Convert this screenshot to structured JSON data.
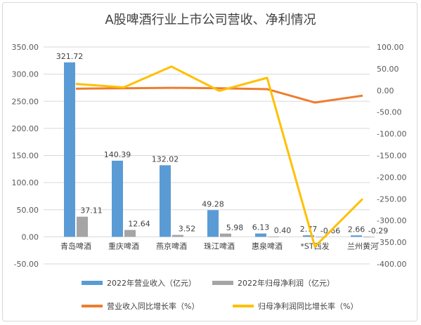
{
  "colors": {
    "bar_revenue": "#5b9bd5",
    "bar_profit": "#a5a5a5",
    "line_revenue_yoy": "#ed7d31",
    "line_profit_yoy": "#ffc000",
    "grid": "#d9d9d9"
  },
  "chart_data": {
    "type": "bar",
    "title": "A股啤酒行业上市公司营收、净利情况",
    "categories": [
      "青岛啤酒",
      "重庆啤酒",
      "燕京啤酒",
      "珠江啤酒",
      "惠泉啤酒",
      "*ST西发",
      "兰州黄河"
    ],
    "y_left": {
      "lim": [
        -50,
        350
      ],
      "ticks": [
        "-50.00",
        "0.00",
        "50.00",
        "100.00",
        "150.00",
        "200.00",
        "250.00",
        "300.00",
        "350.00"
      ]
    },
    "y_right": {
      "lim": [
        -400,
        100
      ],
      "ticks": [
        "-400.00",
        "-350.00",
        "-300.00",
        "-250.00",
        "-200.00",
        "-150.00",
        "-100.00",
        "-50.00",
        "0.00",
        "50.00",
        "100.00"
      ]
    },
    "grid": true,
    "legend_position": "bottom",
    "series": [
      {
        "name": "2022年营业收入（亿元）",
        "type": "bar",
        "axis": "left",
        "values": [
          321.72,
          140.39,
          132.02,
          49.28,
          6.13,
          2.77,
          2.66
        ],
        "labels": [
          "321.72",
          "140.39",
          "132.02",
          "49.28",
          "6.13",
          "2.77",
          "2.66"
        ]
      },
      {
        "name": "2022年归母净利润（亿元）",
        "type": "bar",
        "axis": "left",
        "values": [
          37.11,
          12.64,
          3.52,
          5.98,
          0.4,
          -0.66,
          -0.29
        ],
        "labels": [
          "37.11",
          "12.64",
          "3.52",
          "5.98",
          "0.40",
          "-0.66",
          "-0.29"
        ]
      },
      {
        "name": "营业收入同比增长率（%）",
        "type": "line",
        "axis": "right",
        "values": [
          4,
          5,
          6,
          5,
          3,
          -28,
          -12
        ]
      },
      {
        "name": "归母净利润同比增长率（%）",
        "type": "line",
        "axis": "right",
        "values": [
          15,
          7,
          55,
          -1,
          29,
          -360,
          -250
        ]
      }
    ]
  }
}
